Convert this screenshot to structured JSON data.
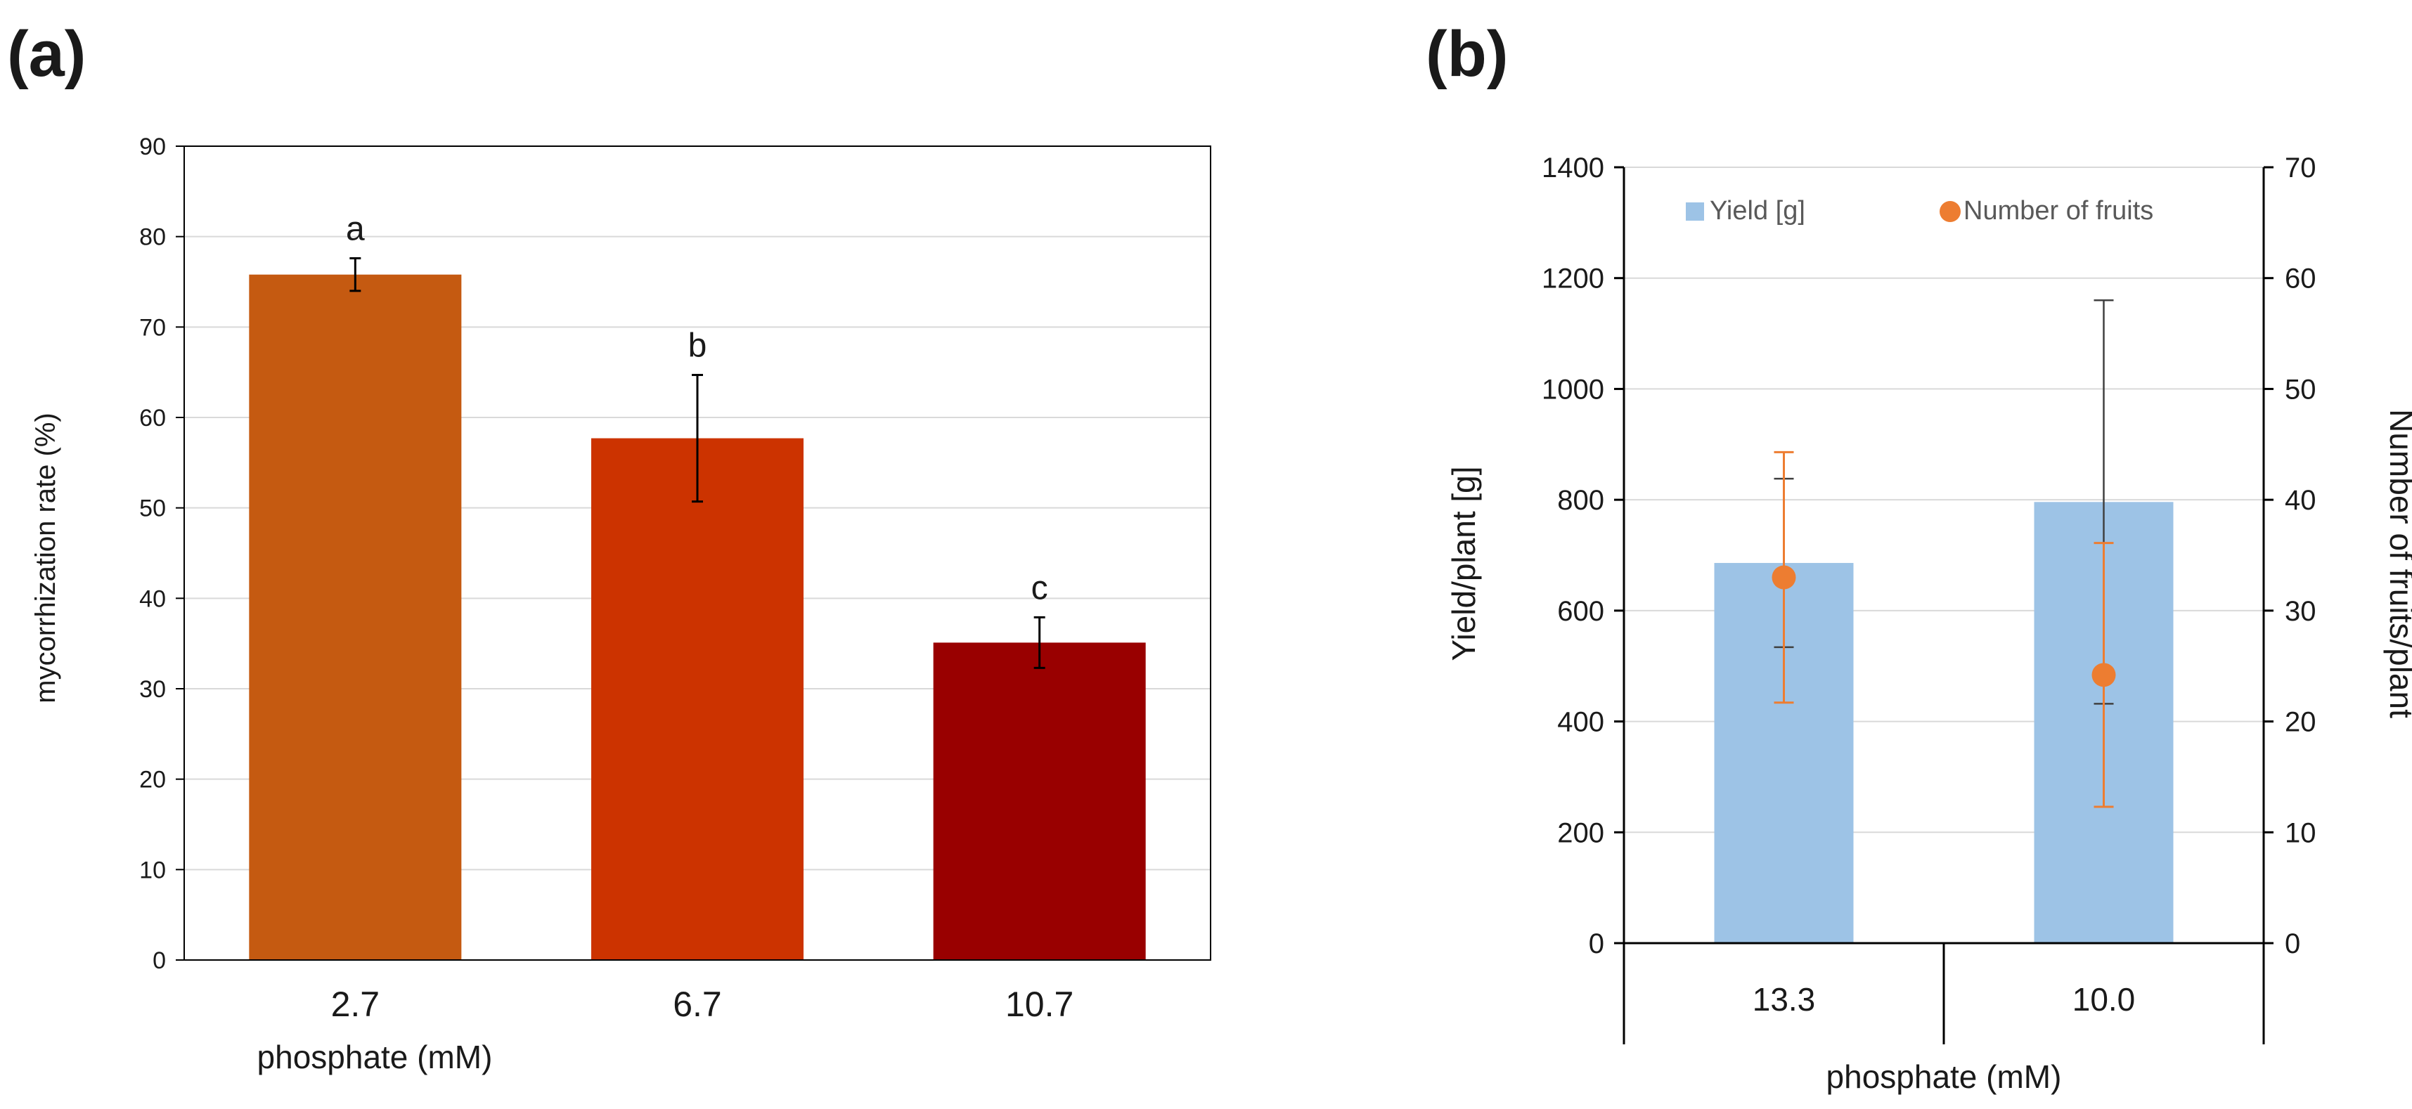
{
  "colors": {
    "bar_a": [
      "#c55a11",
      "#cc3300",
      "#990000"
    ],
    "bar_b": "#9dc3e6",
    "marker_b": "#ed7d31",
    "grid": "#d9d9d9",
    "axis": "#000000"
  },
  "chart_data": [
    {
      "panel_label": "(a)",
      "type": "bar",
      "xlabel": "phosphate (mM)",
      "ylabel": "mycorrhization rate (%)",
      "ylim": [
        0,
        90
      ],
      "yticks": [
        0,
        10,
        20,
        30,
        40,
        50,
        60,
        70,
        80,
        90
      ],
      "grid": true,
      "categories": [
        "2.7",
        "6.7",
        "10.7"
      ],
      "values": [
        75.8,
        57.7,
        35.1
      ],
      "errors": [
        1.8,
        7.0,
        2.8
      ],
      "significance": [
        "a",
        "b",
        "c"
      ]
    },
    {
      "panel_label": "(b)",
      "type": "bar",
      "xlabel": "phosphate (mM)",
      "ylabel": "Yield/plant [g]",
      "y2label": "Number of fruits/plant",
      "ylim": [
        0,
        1400
      ],
      "y2lim": [
        0,
        70
      ],
      "yticks": [
        0,
        200,
        400,
        600,
        800,
        1000,
        1200,
        1400
      ],
      "y2ticks": [
        0,
        10,
        20,
        30,
        40,
        50,
        60,
        70
      ],
      "grid": true,
      "legend_position": "top",
      "categories": [
        "13.3",
        "10.0"
      ],
      "series": [
        {
          "name": "Yield [g]",
          "type": "bar",
          "axis": "left",
          "values": [
            686,
            796
          ],
          "errors": [
            152,
            364
          ]
        },
        {
          "name": "Number of fruits",
          "type": "scatter",
          "axis": "right",
          "values": [
            33.0,
            24.2
          ],
          "errors": [
            11.3,
            11.9
          ]
        }
      ]
    }
  ]
}
